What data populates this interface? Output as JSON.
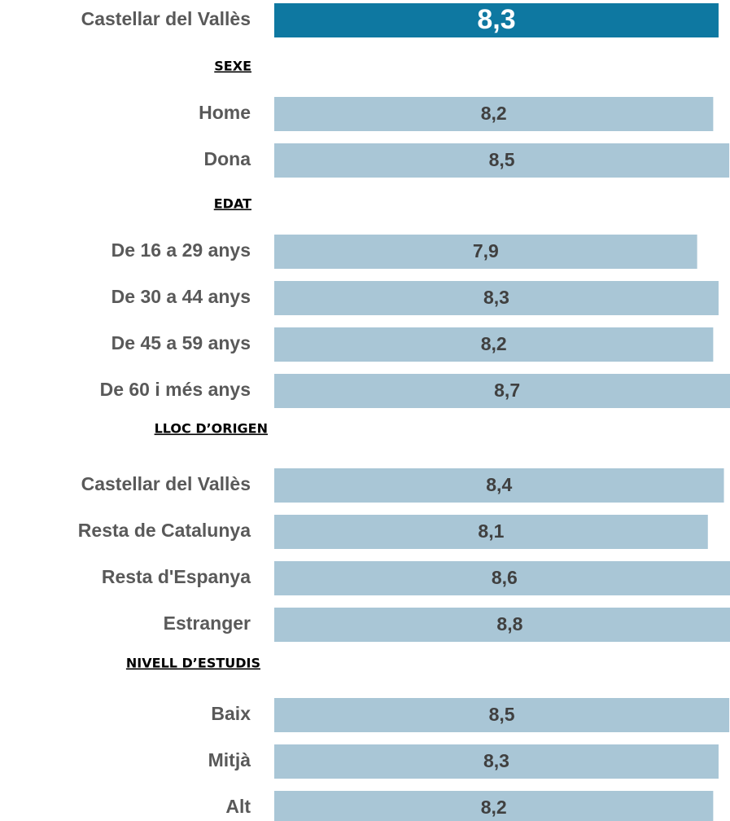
{
  "chart_data": {
    "type": "bar",
    "xlim": [
      0,
      9
    ],
    "total": {
      "category": "Castellar del Vallès",
      "value": 8.3,
      "value_label": "8,3",
      "color": "#0e78a1"
    },
    "color": "#a9c6d6",
    "groups": [
      {
        "title": "SEXE",
        "categories": [
          "Home",
          "Dona"
        ],
        "values": [
          8.2,
          8.5
        ],
        "value_labels": [
          "8,2",
          "8,5"
        ]
      },
      {
        "title": "EDAT",
        "categories": [
          "De 16 a 29 anys",
          "De 30 a 44 anys",
          "De 45 a 59 anys",
          "De 60 i més anys"
        ],
        "values": [
          7.9,
          8.3,
          8.2,
          8.7
        ],
        "value_labels": [
          "7,9",
          "8,3",
          "8,2",
          "8,7"
        ]
      },
      {
        "title": "LLOC D’ORIGEN",
        "categories": [
          "Castellar del Vallès",
          "Resta de Catalunya",
          "Resta d'Espanya",
          "Estranger"
        ],
        "values": [
          8.4,
          8.1,
          8.6,
          8.8
        ],
        "value_labels": [
          "8,4",
          "8,1",
          "8,6",
          "8,8"
        ]
      },
      {
        "title": "NIVELL D’ESTUDIS",
        "categories": [
          "Baix",
          "Mitjà",
          "Alt"
        ],
        "values": [
          8.5,
          8.3,
          8.2
        ],
        "value_labels": [
          "8,5",
          "8,3",
          "8,2"
        ]
      }
    ]
  }
}
